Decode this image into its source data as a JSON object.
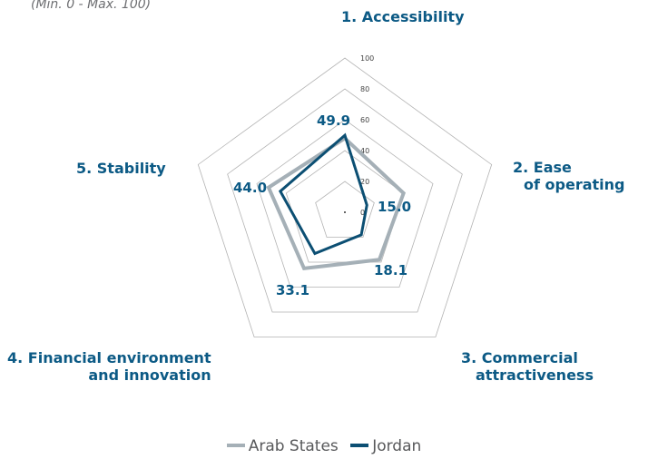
{
  "subtitle": "(Min. 0 - Max. 100)",
  "chart_data": {
    "type": "radar",
    "axes": [
      {
        "label_lines": [
          "1. Accessibility"
        ]
      },
      {
        "label_lines": [
          "2. Ease",
          "of operating"
        ]
      },
      {
        "label_lines": [
          "3. Commercial",
          "attractiveness"
        ]
      },
      {
        "label_lines": [
          "4. Financial environment",
          "and innovation"
        ]
      },
      {
        "label_lines": [
          "5. Stability"
        ]
      }
    ],
    "range": [
      0,
      100
    ],
    "ticks": [
      "0",
      "20",
      "40",
      "60",
      "80",
      "100"
    ],
    "tick_values": [
      0,
      20,
      40,
      60,
      80,
      100
    ],
    "series": [
      {
        "name": "Arab States",
        "color": "#a5b0b7",
        "values": [
          48,
          40,
          38,
          45,
          52
        ]
      },
      {
        "name": "Jordan",
        "color": "#0c4f73",
        "values": [
          49.9,
          15.0,
          18.1,
          33.1,
          44.0
        ]
      }
    ],
    "data_labels": [
      "49.9",
      "15.0",
      "18.1",
      "33.1",
      "44.0"
    ],
    "legend_position": "bottom"
  }
}
